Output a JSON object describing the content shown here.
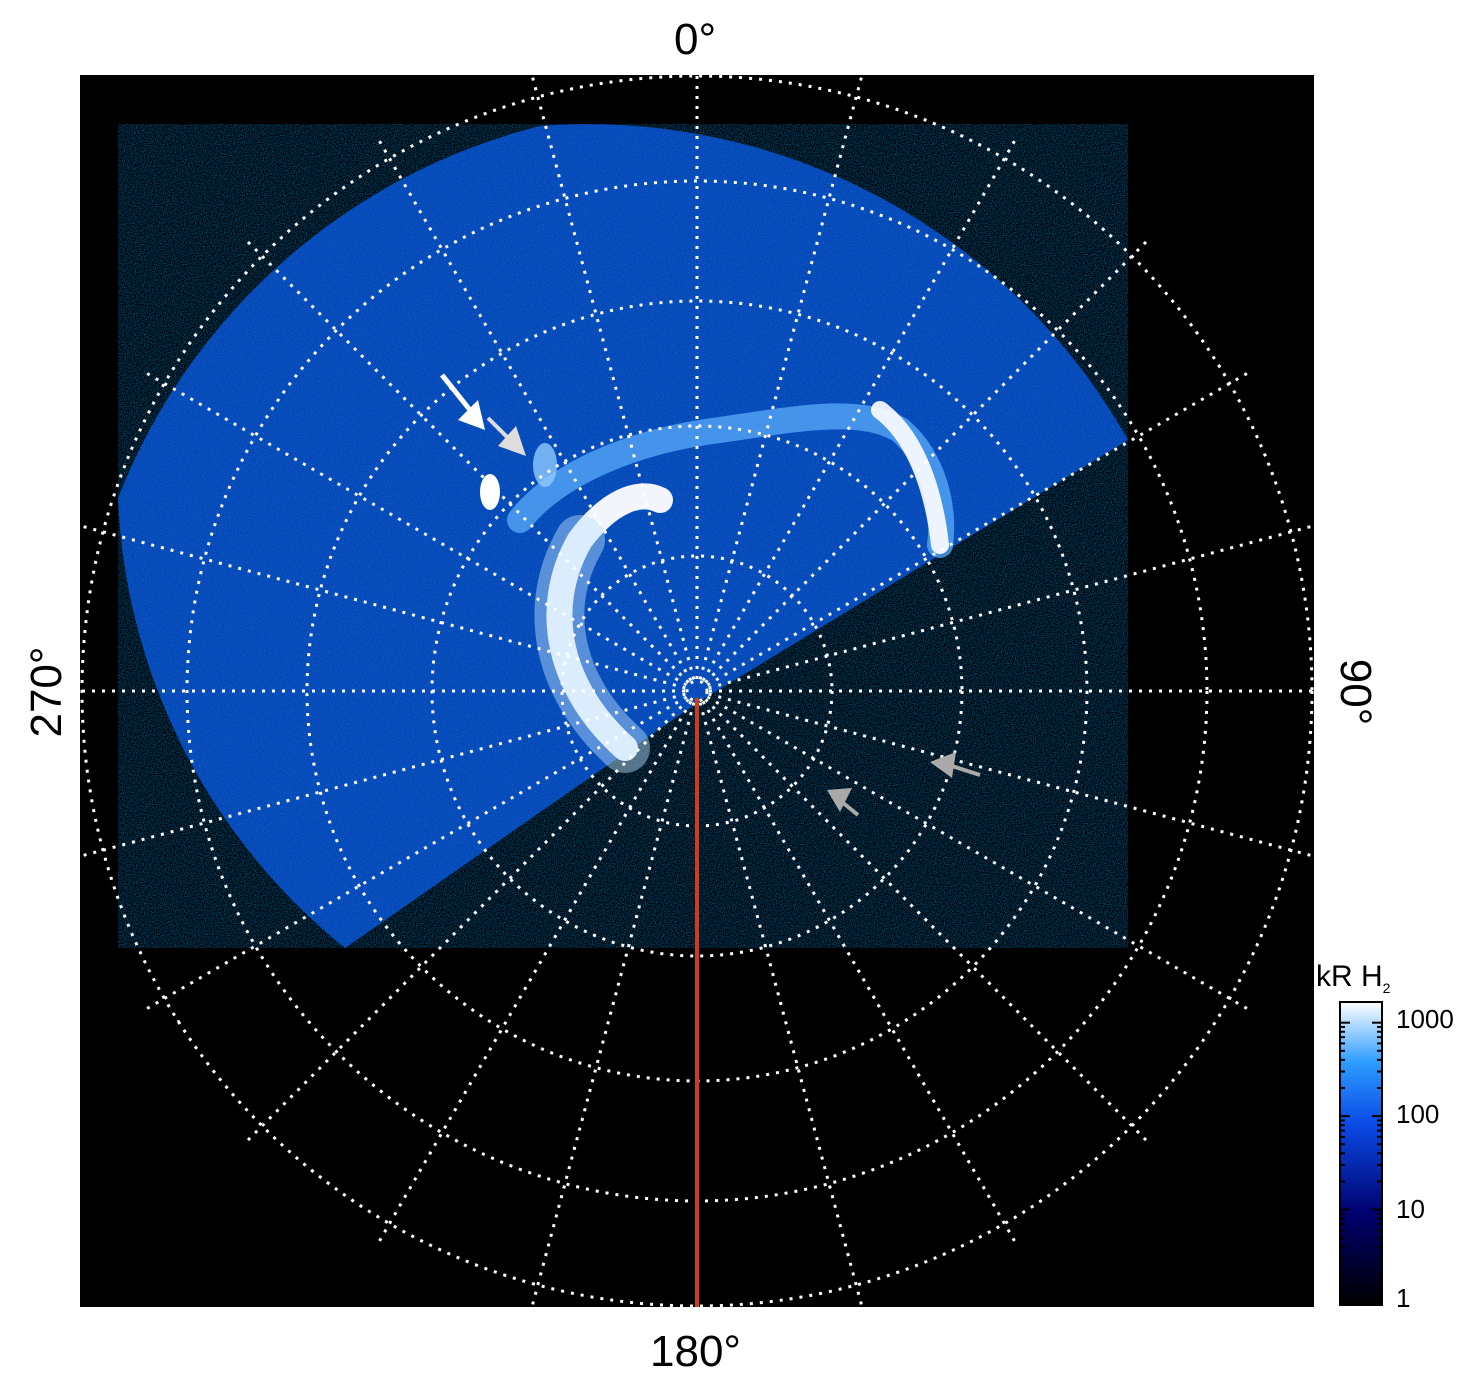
{
  "polar_plot": {
    "angle_labels": {
      "top": "0°",
      "right": "90°",
      "bottom": "180°",
      "left": "270°"
    },
    "colors": {
      "background": "#000000",
      "grid": "#ffffff",
      "meridian_line": "#d23a1a",
      "emission_low": "#00008a",
      "emission_mid": "#0d6bff",
      "emission_high": "#ffffff"
    }
  },
  "colorbar": {
    "title_main": "kR H",
    "title_sub": "2",
    "ticks": [
      "1000",
      "100",
      "10",
      "1"
    ],
    "colors": [
      "#000000",
      "#00006e",
      "#0a4be6",
      "#2c9cff",
      "#ffffff"
    ]
  }
}
